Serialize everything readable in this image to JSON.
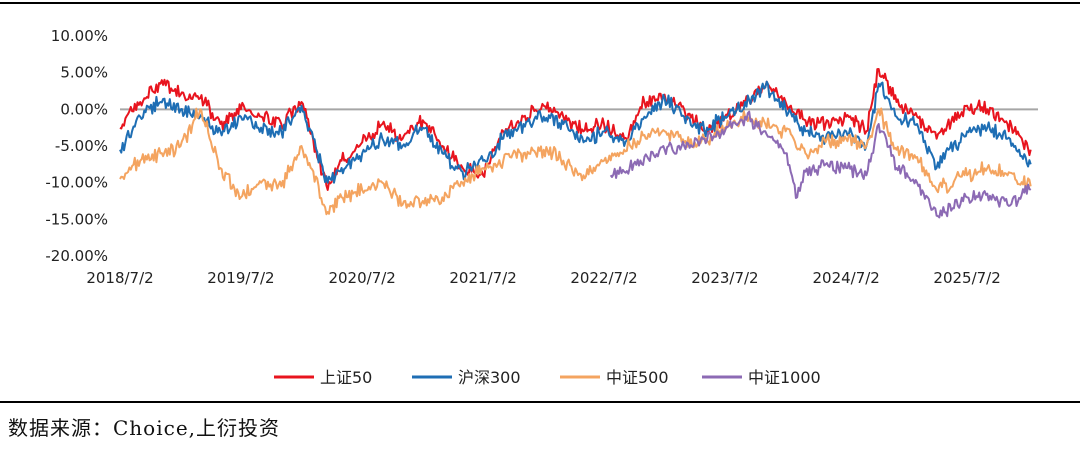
{
  "chart_data": {
    "type": "line",
    "ylim": [
      -20,
      10
    ],
    "y_ticks": [
      "10.00%",
      "5.00%",
      "0.00%",
      "-5.00%",
      "-10.00%",
      "-15.00%",
      "-20.00%"
    ],
    "x_ticks": [
      "2018/7/2",
      "2019/7/2",
      "2020/7/2",
      "2021/7/2",
      "2022/7/2",
      "2023/7/2",
      "2024/7/2",
      "2025/7/2"
    ],
    "xlim": [
      "2018-07-02",
      "2026-02-01"
    ],
    "grid": false,
    "legend_position": "bottom",
    "series": [
      {
        "name": "上证50",
        "color": "#e8141e",
        "x": [
          "2018-07-02",
          "2018-09-01",
          "2018-11-01",
          "2019-01-01",
          "2019-03-01",
          "2019-05-01",
          "2019-07-02",
          "2019-09-01",
          "2019-11-01",
          "2020-01-01",
          "2020-03-20",
          "2020-05-01",
          "2020-07-02",
          "2020-09-01",
          "2020-11-01",
          "2021-01-01",
          "2021-03-01",
          "2021-05-01",
          "2021-07-02",
          "2021-09-01",
          "2021-11-01",
          "2022-01-01",
          "2022-03-01",
          "2022-05-01",
          "2022-07-02",
          "2022-09-01",
          "2022-11-01",
          "2023-01-01",
          "2023-03-01",
          "2023-05-01",
          "2023-07-02",
          "2023-09-01",
          "2023-11-01",
          "2024-01-01",
          "2024-03-01",
          "2024-05-01",
          "2024-07-02",
          "2024-09-01",
          "2024-10-08",
          "2024-12-01",
          "2025-02-01",
          "2025-04-01",
          "2025-07-02",
          "2025-09-01",
          "2025-11-01",
          "2026-01-10"
        ],
        "values": [
          -2.5,
          1.0,
          3.5,
          2.0,
          1.5,
          -2.0,
          0.0,
          -1.0,
          -2.0,
          1.0,
          -11.0,
          -7.0,
          -4.5,
          -2.0,
          -4.0,
          -1.5,
          -5.0,
          -8.0,
          -9.0,
          -3.0,
          -1.0,
          0.5,
          -1.0,
          -3.0,
          -2.0,
          -4.0,
          1.0,
          2.0,
          0.0,
          -3.0,
          -1.0,
          1.0,
          3.0,
          1.0,
          -1.5,
          -2.0,
          -1.0,
          -3.0,
          5.5,
          1.0,
          -1.0,
          -4.0,
          0.5,
          0.0,
          -2.0,
          -5.5
        ]
      },
      {
        "name": "沪深300",
        "color": "#1e6eb4",
        "x": [
          "2018-07-02",
          "2018-09-01",
          "2018-11-01",
          "2019-01-01",
          "2019-03-01",
          "2019-05-01",
          "2019-07-02",
          "2019-09-01",
          "2019-11-01",
          "2020-01-01",
          "2020-03-20",
          "2020-05-01",
          "2020-07-02",
          "2020-09-01",
          "2020-11-01",
          "2021-01-01",
          "2021-03-01",
          "2021-05-01",
          "2021-07-02",
          "2021-09-01",
          "2021-11-01",
          "2022-01-01",
          "2022-03-01",
          "2022-05-01",
          "2022-07-02",
          "2022-09-01",
          "2022-11-01",
          "2023-01-01",
          "2023-03-01",
          "2023-05-01",
          "2023-07-02",
          "2023-09-01",
          "2023-11-01",
          "2024-01-01",
          "2024-03-01",
          "2024-05-01",
          "2024-07-02",
          "2024-09-01",
          "2024-10-08",
          "2024-12-01",
          "2025-02-01",
          "2025-04-01",
          "2025-07-02",
          "2025-09-01",
          "2025-11-01",
          "2026-01-10"
        ],
        "values": [
          -5.5,
          -1.0,
          1.0,
          0.0,
          -1.0,
          -3.0,
          -1.0,
          -2.5,
          -3.0,
          0.5,
          -10.0,
          -8.0,
          -6.0,
          -4.0,
          -5.0,
          -2.5,
          -6.0,
          -8.5,
          -7.0,
          -4.0,
          -2.0,
          -1.0,
          -2.0,
          -4.5,
          -3.0,
          -5.0,
          -1.0,
          1.5,
          -1.0,
          -3.0,
          -1.0,
          1.0,
          3.0,
          0.0,
          -3.0,
          -4.0,
          -3.0,
          -5.0,
          3.5,
          -1.0,
          -2.0,
          -8.0,
          -3.0,
          -2.5,
          -4.0,
          -7.5
        ]
      },
      {
        "name": "中证500",
        "color": "#f4a460",
        "x": [
          "2018-07-02",
          "2018-09-01",
          "2018-11-01",
          "2019-01-01",
          "2019-03-01",
          "2019-05-01",
          "2019-07-02",
          "2019-09-01",
          "2019-11-01",
          "2020-01-01",
          "2020-03-20",
          "2020-05-01",
          "2020-07-02",
          "2020-09-01",
          "2020-11-01",
          "2021-01-01",
          "2021-03-01",
          "2021-05-01",
          "2021-07-02",
          "2021-09-01",
          "2021-11-01",
          "2022-01-01",
          "2022-03-01",
          "2022-05-01",
          "2022-07-02",
          "2022-09-01",
          "2022-11-01",
          "2023-01-01",
          "2023-03-01",
          "2023-05-01",
          "2023-07-02",
          "2023-09-01",
          "2023-11-01",
          "2024-01-01",
          "2024-03-01",
          "2024-05-01",
          "2024-07-02",
          "2024-09-01",
          "2024-10-08",
          "2024-12-01",
          "2025-02-01",
          "2025-04-01",
          "2025-07-02",
          "2025-09-01",
          "2025-11-01",
          "2026-01-10"
        ],
        "values": [
          -9.5,
          -7.0,
          -6.0,
          -5.0,
          0.0,
          -8.0,
          -12.0,
          -10.0,
          -10.5,
          -5.0,
          -14.0,
          -12.0,
          -11.0,
          -10.0,
          -13.0,
          -12.5,
          -12.0,
          -10.0,
          -8.0,
          -7.0,
          -6.0,
          -5.5,
          -7.0,
          -9.0,
          -7.0,
          -5.5,
          -3.5,
          -3.0,
          -4.5,
          -4.0,
          -2.5,
          -1.0,
          -2.0,
          -3.0,
          -6.0,
          -4.5,
          -4.0,
          -5.0,
          0.0,
          -5.5,
          -6.5,
          -11.0,
          -9.0,
          -8.0,
          -9.0,
          -10.5
        ]
      },
      {
        "name": "中证1000",
        "color": "#8c6ab4",
        "x": [
          "2022-07-22",
          "2022-09-01",
          "2022-11-01",
          "2023-01-01",
          "2023-03-01",
          "2023-05-01",
          "2023-07-02",
          "2023-09-01",
          "2023-11-01",
          "2024-01-01",
          "2024-02-05",
          "2024-03-01",
          "2024-05-01",
          "2024-07-02",
          "2024-09-01",
          "2024-10-08",
          "2024-12-01",
          "2025-02-01",
          "2025-04-01",
          "2025-07-02",
          "2025-09-01",
          "2025-11-01",
          "2026-01-10"
        ],
        "values": [
          -9.0,
          -8.5,
          -6.5,
          -5.5,
          -5.0,
          -4.0,
          -3.0,
          -1.0,
          -3.0,
          -6.0,
          -12.0,
          -8.5,
          -7.5,
          -8.0,
          -9.0,
          -2.0,
          -8.0,
          -10.0,
          -14.5,
          -12.0,
          -11.5,
          -13.0,
          -11.0
        ]
      }
    ]
  },
  "source_text": "数据来源：Choice,上衍投资"
}
